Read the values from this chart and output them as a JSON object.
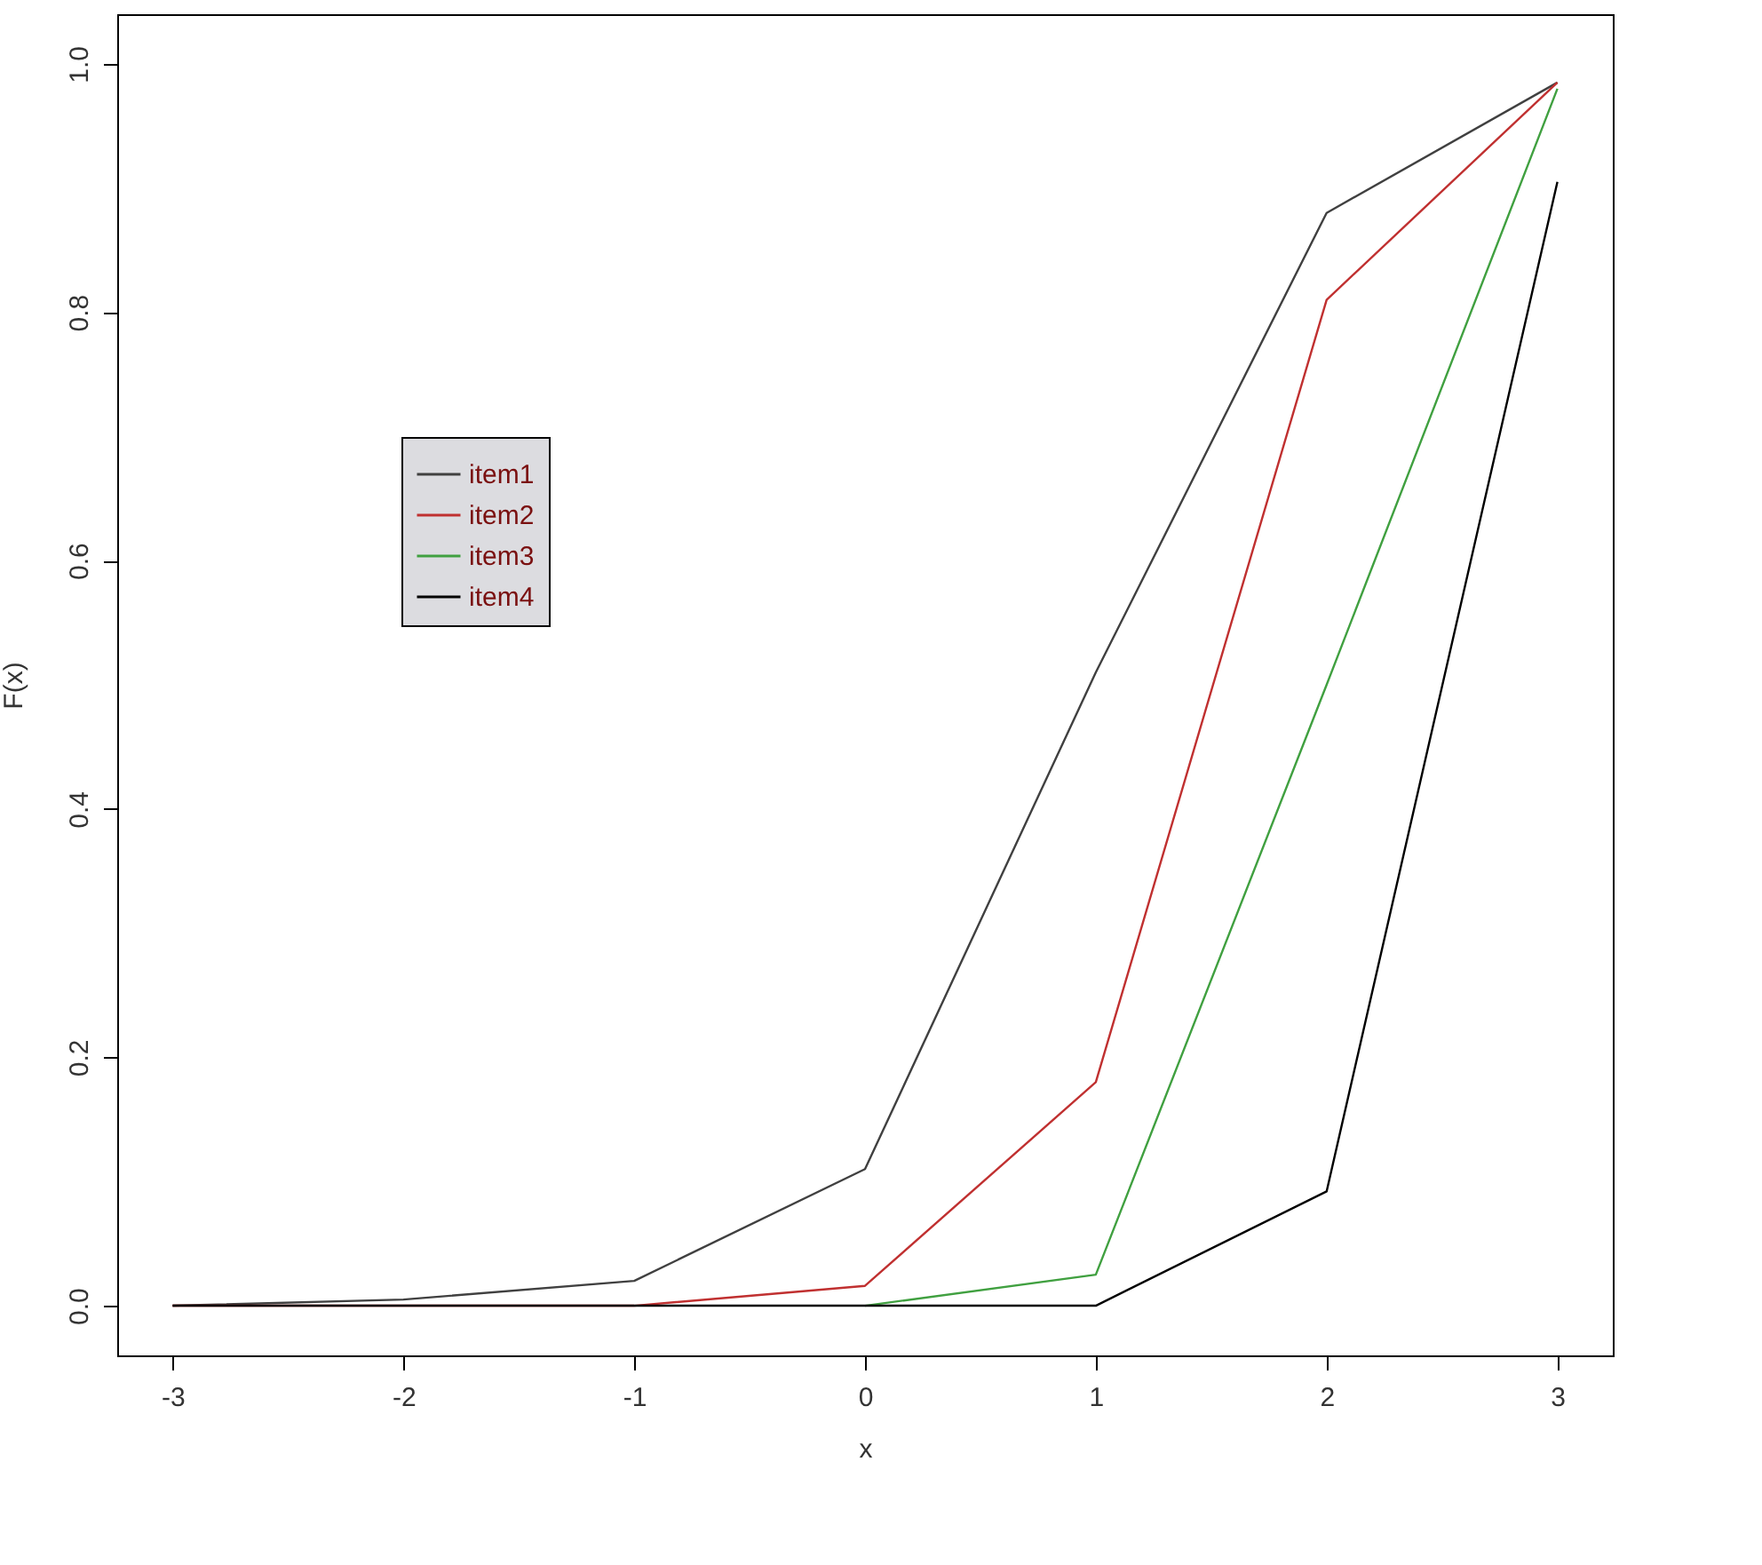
{
  "chart_data": {
    "type": "line",
    "xlabel": "x",
    "ylabel": "F(x)",
    "x": [
      -3,
      -2,
      -1,
      0,
      1,
      2,
      3
    ],
    "series": [
      {
        "name": "item1",
        "color": "#404040",
        "values": [
          0,
          0.005,
          0.02,
          0.11,
          0.51,
          0.88,
          0.985
        ]
      },
      {
        "name": "item2",
        "color": "#c03030",
        "values": [
          0,
          0,
          0,
          0.016,
          0.18,
          0.81,
          0.985
        ]
      },
      {
        "name": "item3",
        "color": "#40a040",
        "values": [
          null,
          null,
          null,
          0,
          0.025,
          0.5,
          0.98
        ]
      },
      {
        "name": "item4",
        "color": "#000000",
        "values": [
          0,
          0,
          0,
          0,
          0,
          0.092,
          0.905
        ]
      }
    ],
    "xlim": [
      -3.24,
      3.24
    ],
    "xticks": [
      -3,
      -2,
      -1,
      0,
      1,
      2,
      3
    ],
    "ylim": [
      -0.04,
      1.04
    ],
    "yticks": [
      {
        "value": 0,
        "label": "0.0"
      },
      0.2,
      0.4,
      0.6,
      0.8,
      {
        "value": 1,
        "label": "1.0"
      }
    ],
    "legend": "top left",
    "grid": false,
    "marker": "none",
    "line_style": "solid"
  }
}
